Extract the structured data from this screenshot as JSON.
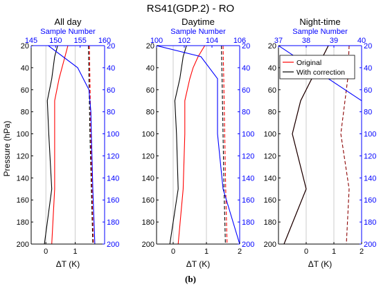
{
  "figure": {
    "title": "RS41(GDP.2) - RO",
    "sublabel": "(b)",
    "y_label": "Pressure (hPa)",
    "x_label": "ΔT (K)",
    "top_axis_label": "Sample Number",
    "colors": {
      "original": "#ff0000",
      "corrected": "#000000",
      "sample": "#0000ff",
      "dark_red": "#8b0000",
      "grid": "#bfbfbf"
    }
  },
  "chart_data": [
    {
      "type": "line",
      "title": "All day",
      "ylabel": "Pressure (hPa)",
      "xlabel": "ΔT (K)",
      "ylim": [
        200,
        20
      ],
      "yticks": [
        20,
        40,
        60,
        80,
        100,
        120,
        140,
        160,
        180,
        200
      ],
      "xlim": [
        -0.5,
        2
      ],
      "xticks": [
        0,
        1
      ],
      "top_axis": {
        "label": "Sample Number",
        "lim": [
          145,
          160
        ],
        "ticks": [
          145,
          150,
          155,
          160
        ]
      },
      "legend": false,
      "series": [
        {
          "name": "Original",
          "style": "solid",
          "color": "#ff0000",
          "y": [
            20,
            30,
            40,
            50,
            70,
            100,
            150,
            200
          ],
          "x": [
            0.75,
            0.65,
            0.55,
            0.45,
            0.3,
            0.3,
            0.3,
            0.2
          ]
        },
        {
          "name": "With correction",
          "style": "solid",
          "color": "#000000",
          "y": [
            20,
            30,
            40,
            50,
            70,
            100,
            150,
            200
          ],
          "x": [
            0.4,
            0.3,
            0.25,
            0.2,
            0.05,
            0.1,
            0.2,
            -0.05
          ]
        },
        {
          "style": "dashed",
          "color": "#ff0000",
          "y": [
            20,
            50,
            100,
            150,
            200
          ],
          "x": [
            1.48,
            1.5,
            1.53,
            1.57,
            1.62
          ]
        },
        {
          "style": "dashed",
          "color": "#000000",
          "y": [
            20,
            50,
            100,
            150,
            200
          ],
          "x": [
            1.45,
            1.47,
            1.5,
            1.55,
            1.6
          ]
        },
        {
          "style": "solid",
          "color": "#0000ff",
          "axis": "top",
          "y": [
            20,
            40,
            60,
            80,
            100,
            150,
            200
          ],
          "x": [
            148.5,
            154.5,
            156.8,
            157.2,
            157.3,
            157.6,
            158.0
          ]
        }
      ]
    },
    {
      "type": "line",
      "title": "Daytime",
      "ylabel": "Pressure (hPa)",
      "xlabel": "ΔT (K)",
      "ylim": [
        200,
        20
      ],
      "yticks": [
        20,
        40,
        60,
        80,
        100,
        120,
        140,
        160,
        180,
        200
      ],
      "xlim": [
        -0.5,
        2
      ],
      "xticks": [
        0,
        1,
        2
      ],
      "top_axis": {
        "label": "Sample Number",
        "lim": [
          100,
          106
        ],
        "ticks": [
          100,
          102,
          104,
          106
        ]
      },
      "legend": false,
      "series": [
        {
          "name": "Original",
          "style": "solid",
          "color": "#ff0000",
          "y": [
            20,
            30,
            40,
            50,
            70,
            100,
            150,
            200
          ],
          "x": [
            0.95,
            0.75,
            0.6,
            0.5,
            0.35,
            0.35,
            0.3,
            0.15
          ]
        },
        {
          "name": "With correction",
          "style": "solid",
          "color": "#000000",
          "y": [
            20,
            30,
            40,
            50,
            70,
            100,
            150,
            200
          ],
          "x": [
            0.4,
            0.3,
            0.25,
            0.2,
            0.05,
            0.1,
            0.15,
            -0.1
          ]
        },
        {
          "style": "dashed",
          "color": "#ff0000",
          "y": [
            20,
            50,
            100,
            150,
            200
          ],
          "x": [
            1.5,
            1.52,
            1.55,
            1.58,
            1.62
          ]
        },
        {
          "style": "dashed",
          "color": "#000000",
          "y": [
            20,
            50,
            100,
            150,
            200
          ],
          "x": [
            1.45,
            1.47,
            1.5,
            1.53,
            1.57
          ]
        },
        {
          "style": "solid",
          "color": "#0000ff",
          "axis": "top",
          "y": [
            20,
            30,
            50,
            100,
            150,
            200
          ],
          "x": [
            100,
            103.2,
            104.4,
            104.4,
            104.8,
            106
          ]
        }
      ]
    },
    {
      "type": "line",
      "title": "Night-time",
      "ylabel": "Pressure (hPa)",
      "xlabel": "ΔT (K)",
      "ylim": [
        200,
        20
      ],
      "yticks": [
        20,
        40,
        60,
        80,
        100,
        120,
        140,
        160,
        180,
        200
      ],
      "xlim": [
        -1,
        2
      ],
      "xticks": [
        0,
        1,
        2
      ],
      "top_axis": {
        "label": "Sample Number",
        "lim": [
          37,
          40
        ],
        "ticks": [
          37,
          38,
          39,
          40
        ]
      },
      "legend": true,
      "legend_entries": [
        "Original",
        "With correction"
      ],
      "series": [
        {
          "name": "Original",
          "style": "solid",
          "color": "#ff0000",
          "y": [
            20,
            40,
            70,
            100,
            150,
            200
          ],
          "x": [
            0.8,
            0.4,
            -0.2,
            -0.5,
            0.0,
            -0.8
          ]
        },
        {
          "name": "With correction",
          "style": "solid",
          "color": "#000000",
          "y": [
            20,
            40,
            70,
            100,
            150,
            200
          ],
          "x": [
            0.8,
            0.4,
            -0.2,
            -0.5,
            0.0,
            -0.8
          ]
        },
        {
          "style": "dashed",
          "color": "#8b0000",
          "y": [
            20,
            50,
            100,
            150,
            200
          ],
          "x": [
            1.55,
            1.5,
            1.25,
            1.55,
            1.45
          ]
        },
        {
          "style": "solid",
          "color": "#0000ff",
          "axis": "top",
          "y": [
            20,
            70
          ],
          "x": [
            37.0,
            40.0
          ]
        }
      ]
    }
  ]
}
